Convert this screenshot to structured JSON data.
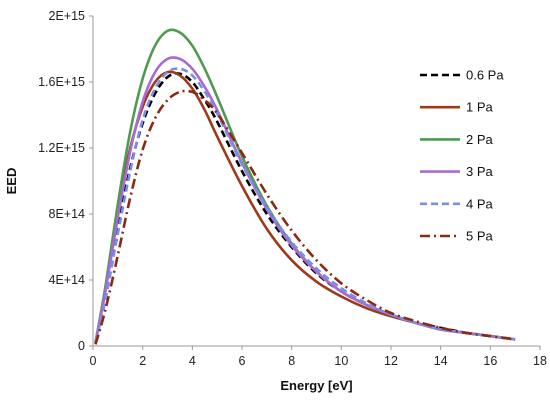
{
  "chart_data": {
    "type": "line",
    "xlabel": "Energy [eV]",
    "ylabel": "EED",
    "xlim": [
      0,
      18
    ],
    "ylim": [
      0,
      2000000000000000.0
    ],
    "x_ticks": [
      0,
      2,
      4,
      6,
      8,
      10,
      12,
      14,
      16,
      18
    ],
    "x_tick_labels": [
      "0",
      "2",
      "4",
      "6",
      "8",
      "10",
      "12",
      "14",
      "16",
      "18"
    ],
    "y_ticks": [
      0,
      400000000000000.0,
      800000000000000.0,
      1200000000000000.0,
      1600000000000000.0,
      2000000000000000.0
    ],
    "y_tick_labels": [
      "0",
      "4E+14",
      "8E+14",
      "1.2E+15",
      "1.6E+15",
      "2E+15"
    ],
    "grid": false,
    "legend_position": "right",
    "x": [
      0.1,
      0.5,
      1,
      1.5,
      2,
      2.5,
      3,
      3.5,
      4,
      4.5,
      5,
      6,
      7,
      8,
      9,
      10,
      11,
      12,
      13,
      14,
      15,
      16,
      17
    ],
    "series": [
      {
        "name": "0.6 Pa",
        "color": "#000000",
        "dash": "dash",
        "values": [
          20000000000000.0,
          300000000000000.0,
          720000000000000.0,
          1080000000000000.0,
          1350000000000000.0,
          1530000000000000.0,
          1630000000000000.0,
          1650000000000000.0,
          1600000000000000.0,
          1490000000000000.0,
          1360000000000000.0,
          1060000000000000.0,
          800000000000000.0,
          600000000000000.0,
          440000000000000.0,
          330000000000000.0,
          250000000000000.0,
          190000000000000.0,
          140000000000000.0,
          110000000000000.0,
          80000000000000.0,
          60000000000000.0,
          40000000000000.0
        ]
      },
      {
        "name": "1 Pa",
        "color": "#9c3a1a",
        "dash": "solid",
        "values": [
          20000000000000.0,
          350000000000000.0,
          820000000000000.0,
          1200000000000000.0,
          1450000000000000.0,
          1600000000000000.0,
          1660000000000000.0,
          1640000000000000.0,
          1560000000000000.0,
          1430000000000000.0,
          1270000000000000.0,
          970000000000000.0,
          710000000000000.0,
          520000000000000.0,
          390000000000000.0,
          300000000000000.0,
          230000000000000.0,
          180000000000000.0,
          140000000000000.0,
          100000000000000.0,
          80000000000000.0,
          60000000000000.0,
          40000000000000.0
        ]
      },
      {
        "name": "2 Pa",
        "color": "#4e9a4e",
        "dash": "solid",
        "values": [
          20000000000000.0,
          360000000000000.0,
          860000000000000.0,
          1300000000000000.0,
          1620000000000000.0,
          1820000000000000.0,
          1910000000000000.0,
          1900000000000000.0,
          1820000000000000.0,
          1680000000000000.0,
          1510000000000000.0,
          1150000000000000.0,
          850000000000000.0,
          620000000000000.0,
          450000000000000.0,
          330000000000000.0,
          250000000000000.0,
          190000000000000.0,
          140000000000000.0,
          100000000000000.0,
          80000000000000.0,
          60000000000000.0,
          40000000000000.0
        ]
      },
      {
        "name": "3 Pa",
        "color": "#a66ad6",
        "dash": "solid",
        "values": [
          20000000000000.0,
          330000000000000.0,
          780000000000000.0,
          1180000000000000.0,
          1480000000000000.0,
          1660000000000000.0,
          1740000000000000.0,
          1740000000000000.0,
          1680000000000000.0,
          1570000000000000.0,
          1430000000000000.0,
          1110000000000000.0,
          830000000000000.0,
          610000000000000.0,
          450000000000000.0,
          330000000000000.0,
          250000000000000.0,
          190000000000000.0,
          140000000000000.0,
          100000000000000.0,
          80000000000000.0,
          60000000000000.0,
          40000000000000.0
        ]
      },
      {
        "name": "4 Pa",
        "color": "#7b8ee6",
        "dash": "dash",
        "values": [
          20000000000000.0,
          280000000000000.0,
          680000000000000.0,
          1060000000000000.0,
          1370000000000000.0,
          1560000000000000.0,
          1660000000000000.0,
          1680000000000000.0,
          1640000000000000.0,
          1540000000000000.0,
          1410000000000000.0,
          1100000000000000.0,
          840000000000000.0,
          630000000000000.0,
          470000000000000.0,
          350000000000000.0,
          260000000000000.0,
          190000000000000.0,
          140000000000000.0,
          100000000000000.0,
          80000000000000.0,
          60000000000000.0,
          40000000000000.0
        ]
      },
      {
        "name": "5 Pa",
        "color": "#8b2a10",
        "dash": "dashdot",
        "values": [
          10000000000000.0,
          220000000000000.0,
          550000000000000.0,
          900000000000000.0,
          1190000000000000.0,
          1380000000000000.0,
          1490000000000000.0,
          1540000000000000.0,
          1540000000000000.0,
          1490000000000000.0,
          1410000000000000.0,
          1170000000000000.0,
          920000000000000.0,
          700000000000000.0,
          520000000000000.0,
          380000000000000.0,
          280000000000000.0,
          200000000000000.0,
          150000000000000.0,
          110000000000000.0,
          80000000000000.0,
          60000000000000.0,
          40000000000000.0
        ]
      }
    ]
  }
}
